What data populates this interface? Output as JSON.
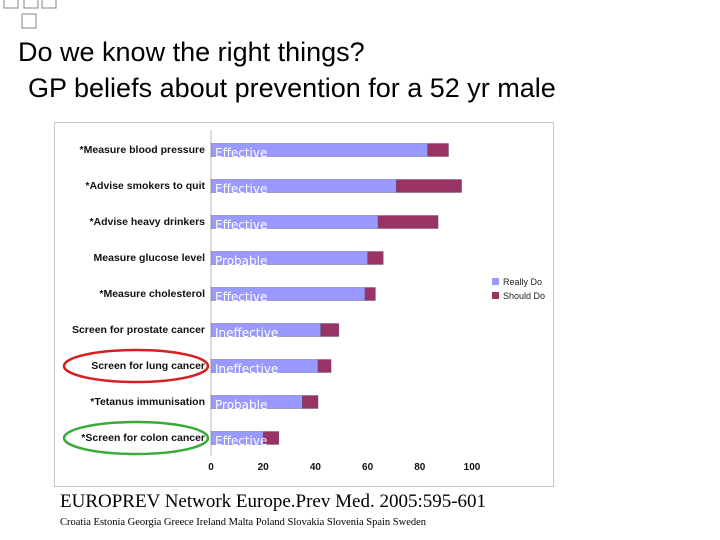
{
  "slide": {
    "title_line1": "Do we know the right things?",
    "title_line2": "GP beliefs about prevention for a 52 yr male",
    "citation": "EUROPREV Network Europe.Prev Med. 2005:595-601",
    "countries": "Croatia Estonia Georgia Greece Ireland Malta Poland Slovakia Slovenia Spain Sweden"
  },
  "chart_data": {
    "type": "bar",
    "orientation": "horizontal",
    "stacked": true,
    "categories": [
      "*Measure blood pressure",
      "*Advise smokers to quit",
      "*Advise heavy drinkers",
      "Measure glucose level",
      "*Measure cholesterol",
      "Screen for prostate cancer",
      "Screen for lung cancer",
      "*Tetanus immunisation",
      "*Screen for colon cancer"
    ],
    "bar_labels": [
      "Effective",
      "Effective",
      "Effective",
      "Probable",
      "Effective",
      "Ineffective",
      "Ineffective",
      "Probable",
      "Effective"
    ],
    "series": [
      {
        "name": "Really Do",
        "color": "#9999ff",
        "values": [
          83,
          71,
          64,
          60,
          59,
          42,
          41,
          35,
          20
        ]
      },
      {
        "name": "Should Do",
        "color": "#993366",
        "values": [
          8,
          25,
          23,
          6,
          4,
          7,
          5,
          6,
          6
        ]
      }
    ],
    "xlim": [
      0,
      100
    ],
    "xticks": [
      0,
      20,
      40,
      60,
      80,
      100
    ],
    "legend_position": "right",
    "highlights": [
      {
        "category": "Screen for lung cancer",
        "color": "#d42020"
      },
      {
        "category": "*Screen for colon cancer",
        "color": "#3aaa3a"
      }
    ]
  }
}
